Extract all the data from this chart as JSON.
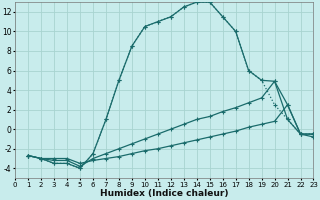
{
  "xlabel": "Humidex (Indice chaleur)",
  "bg_color": "#c8ecec",
  "line_color": "#1a6b6b",
  "grid_color": "#a8d4d0",
  "xlim": [
    0,
    23
  ],
  "ylim": [
    -5,
    13
  ],
  "xticks": [
    0,
    1,
    2,
    3,
    4,
    5,
    6,
    7,
    8,
    9,
    10,
    11,
    12,
    13,
    14,
    15,
    16,
    17,
    18,
    19,
    20,
    21,
    22,
    23
  ],
  "yticks": [
    -4,
    -2,
    0,
    2,
    4,
    6,
    8,
    10,
    12
  ],
  "series": [
    {
      "x": [
        1,
        2,
        3,
        4,
        5,
        6,
        7,
        8,
        9,
        10,
        11,
        12,
        13,
        14,
        15,
        16,
        17,
        18,
        19,
        20,
        21,
        22,
        23
      ],
      "y": [
        -2.7,
        -3,
        -3.5,
        -3.5,
        -4,
        -2.5,
        1,
        5,
        8.5,
        10.5,
        11,
        11.5,
        12.5,
        13,
        13,
        11.5,
        10,
        6,
        5,
        2.5,
        1,
        -0.5,
        -0.5
      ],
      "style": "dotted"
    },
    {
      "x": [
        1,
        2,
        3,
        4,
        5,
        6,
        7,
        8,
        9,
        10,
        11,
        12,
        13,
        14,
        15,
        16,
        17,
        18,
        19,
        20,
        21,
        22,
        23
      ],
      "y": [
        -2.7,
        -3,
        -3.5,
        -3.5,
        -4,
        -2.5,
        1,
        5,
        8.5,
        10.5,
        11,
        11.5,
        12.5,
        13,
        13,
        11.5,
        10,
        6,
        5,
        4.9,
        1.0,
        -0.5,
        -0.5
      ],
      "style": "solid"
    },
    {
      "x": [
        1,
        2,
        3,
        4,
        5,
        6,
        7,
        8,
        9,
        10,
        11,
        12,
        13,
        14,
        15,
        16,
        17,
        18,
        19,
        20,
        21,
        22,
        23
      ],
      "y": [
        -2.7,
        -3,
        -3.2,
        -3.2,
        -3.8,
        -3.0,
        -2.5,
        -2.0,
        -1.5,
        -1.0,
        -0.5,
        0.0,
        0.5,
        1.0,
        1.3,
        1.8,
        2.2,
        2.7,
        3.2,
        4.9,
        2.5,
        -0.5,
        -0.5
      ],
      "style": "solid"
    },
    {
      "x": [
        1,
        2,
        3,
        4,
        5,
        6,
        7,
        8,
        9,
        10,
        11,
        12,
        13,
        14,
        15,
        16,
        17,
        18,
        19,
        20,
        21,
        22,
        23
      ],
      "y": [
        -2.7,
        -3.0,
        -3.0,
        -3.0,
        -3.5,
        -3.2,
        -3.0,
        -2.8,
        -2.5,
        -2.2,
        -2.0,
        -1.7,
        -1.4,
        -1.1,
        -0.8,
        -0.5,
        -0.2,
        0.2,
        0.5,
        0.8,
        2.5,
        -0.5,
        -0.8
      ],
      "style": "solid"
    }
  ]
}
